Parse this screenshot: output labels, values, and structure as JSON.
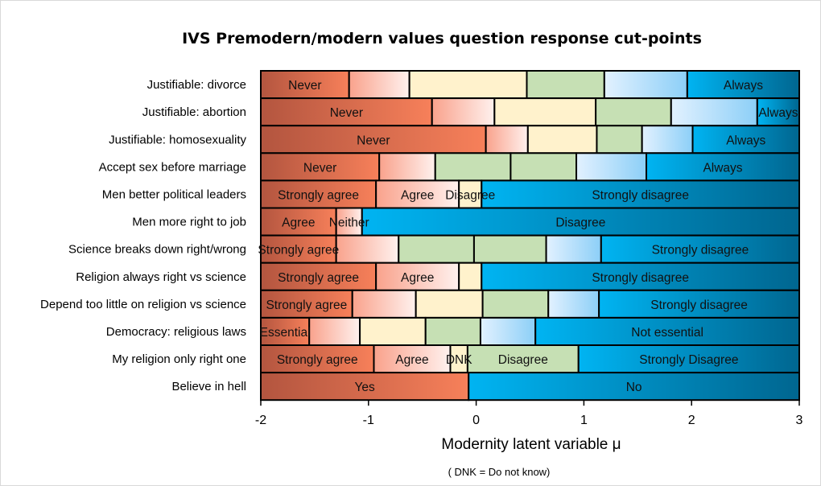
{
  "chart_data": {
    "type": "bar",
    "subtype": "stacked-horizontal-cut-points",
    "title": "IVS Premodern/modern values question response cut-points",
    "xlabel": "Modernity latent variable μ",
    "note": "( DNK = Do not know)",
    "xlim": [
      -2,
      3
    ],
    "xticks": [
      -2,
      -1,
      0,
      1,
      2,
      3
    ],
    "grid": false,
    "legend": "none",
    "colors": {
      "red": [
        "#b3553f",
        "#f7805a"
      ],
      "pink": [
        "#f9a28c",
        "#fff1ee"
      ],
      "cream": "#fff2cc",
      "green": "#c6e0b4",
      "lightblue": [
        "#e2f1ff",
        "#8ccff7"
      ],
      "blue": [
        "#00b4f2",
        "#006690"
      ]
    },
    "rows": [
      {
        "category": "Justifiable: divorce",
        "cuts": [
          -1.18,
          -0.62,
          0.47,
          1.19,
          1.96
        ],
        "fills": [
          "red",
          "pink",
          "cream",
          "green",
          "lightblue",
          "blue"
        ],
        "labels": [
          "Never",
          "",
          "",
          "",
          "",
          "Always"
        ]
      },
      {
        "category": "Justifiable: abortion",
        "cuts": [
          -0.41,
          0.17,
          1.11,
          1.81,
          2.61
        ],
        "fills": [
          "red",
          "pink",
          "cream",
          "green",
          "lightblue",
          "blue"
        ],
        "labels": [
          "Never",
          "",
          "",
          "",
          "",
          "Always"
        ]
      },
      {
        "category": "Justifiable: homosexuality",
        "cuts": [
          0.09,
          0.48,
          1.12,
          1.54,
          2.01
        ],
        "fills": [
          "red",
          "pink",
          "cream",
          "green",
          "lightblue",
          "blue"
        ],
        "labels": [
          "Never",
          "",
          "",
          "",
          "",
          "Always"
        ]
      },
      {
        "category": "Accept sex before marriage",
        "cuts": [
          -0.9,
          -0.38,
          0.32,
          0.93,
          1.58
        ],
        "fills": [
          "red",
          "pink",
          "green",
          "green",
          "lightblue",
          "blue"
        ],
        "labels": [
          "Never",
          "",
          "",
          "",
          "",
          "Always"
        ]
      },
      {
        "category": "Men better political leaders",
        "cuts": [
          -0.93,
          -0.16,
          0.05
        ],
        "fills": [
          "red",
          "pink",
          "cream",
          "blue"
        ],
        "labels": [
          "Strongly agree",
          "Agree",
          "Disagree",
          "Strongly disagree"
        ]
      },
      {
        "category": "Men more right to job",
        "cuts": [
          -1.3,
          -1.06
        ],
        "fills": [
          "red",
          "pink",
          "blue"
        ],
        "labels": [
          "Agree",
          "Neither",
          "Disagree"
        ]
      },
      {
        "category": "Science breaks down right/wrong",
        "cuts": [
          -1.3,
          -0.72,
          -0.02,
          0.65,
          1.16
        ],
        "fills": [
          "red",
          "pink",
          "green",
          "green",
          "lightblue",
          "blue"
        ],
        "labels": [
          "Strongly agree",
          "",
          "",
          "",
          "",
          "Strongly disagree"
        ]
      },
      {
        "category": "Religion always right vs science",
        "cuts": [
          -0.93,
          -0.16,
          0.05
        ],
        "fills": [
          "red",
          "pink",
          "cream",
          "blue"
        ],
        "labels": [
          "Strongly agree",
          "Agree",
          "",
          "Strongly disagree"
        ]
      },
      {
        "category": "Depend too little on religion vs science",
        "cuts": [
          -1.15,
          -0.56,
          0.06,
          0.67,
          1.14
        ],
        "fills": [
          "red",
          "pink",
          "cream",
          "green",
          "lightblue",
          "blue"
        ],
        "labels": [
          "Strongly agree",
          "",
          "",
          "",
          "",
          "Strongly disagree"
        ]
      },
      {
        "category": "Democracy: religious laws",
        "cuts": [
          -1.55,
          -1.08,
          -0.47,
          0.04,
          0.55
        ],
        "fills": [
          "red",
          "pink",
          "cream",
          "green",
          "lightblue",
          "blue"
        ],
        "labels": [
          "Essential",
          "",
          "",
          "",
          "",
          "Not essential"
        ]
      },
      {
        "category": "My religion only right one",
        "cuts": [
          -0.95,
          -0.24,
          -0.08,
          0.95
        ],
        "fills": [
          "red",
          "pink",
          "cream",
          "green",
          "blue"
        ],
        "labels": [
          "Strongly agree",
          "Agree",
          "DNK",
          "Disagree",
          "Strongly Disagree"
        ]
      },
      {
        "category": "Believe in hell",
        "cuts": [
          -0.07
        ],
        "fills": [
          "red",
          "blue"
        ],
        "labels": [
          "Yes",
          "No"
        ]
      }
    ]
  }
}
